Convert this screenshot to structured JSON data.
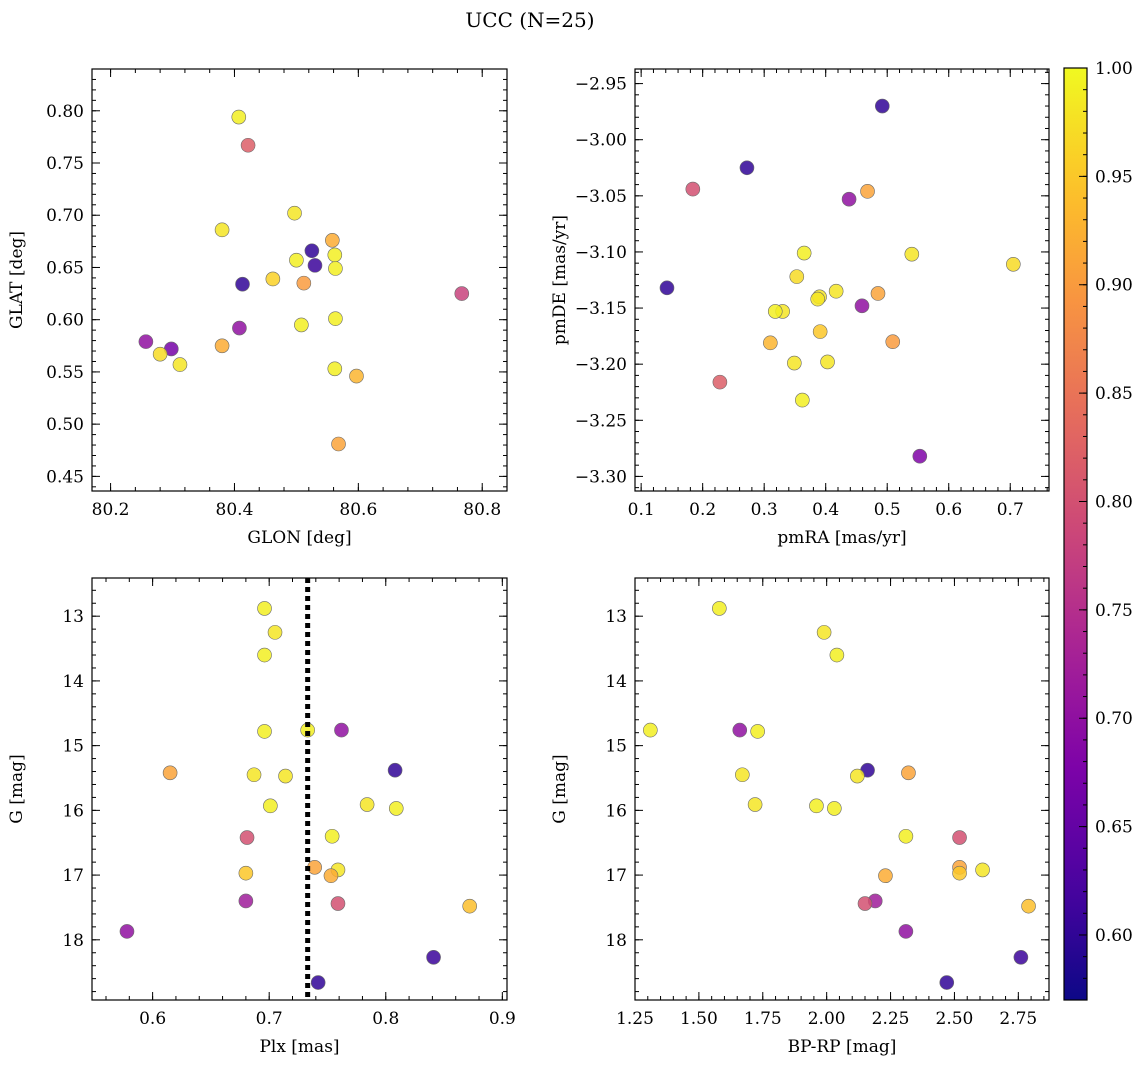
{
  "figure": {
    "title": "UCC (N=25)"
  },
  "colorbar": {
    "range": [
      0.57,
      1.0
    ],
    "ticks": [
      0.6,
      0.65,
      0.7,
      0.75,
      0.8,
      0.85,
      0.9,
      0.95,
      1.0
    ],
    "tick_labels": [
      "0.60",
      "0.65",
      "0.70",
      "0.75",
      "0.80",
      "0.85",
      "0.90",
      "0.95",
      "1.00"
    ],
    "colormap": "plasma"
  },
  "chart_data": [
    {
      "type": "scatter",
      "xlabel": "GLON [deg]",
      "ylabel": "GLAT [deg]",
      "xlim": [
        80.17,
        80.84
      ],
      "ylim": [
        0.436,
        0.84
      ],
      "xticks": [
        80.2,
        80.4,
        80.6,
        80.8
      ],
      "xtick_labels": [
        "80.2",
        "80.4",
        "80.6",
        "80.8"
      ],
      "yticks": [
        0.45,
        0.5,
        0.55,
        0.6,
        0.65,
        0.7,
        0.75,
        0.8
      ],
      "ytick_labels": [
        "0.45",
        "0.50",
        "0.55",
        "0.60",
        "0.65",
        "0.70",
        "0.75",
        "0.80"
      ],
      "points": [
        {
          "x": 80.407,
          "y": 0.794,
          "c": 0.99
        },
        {
          "x": 80.422,
          "y": 0.767,
          "c": 0.82
        },
        {
          "x": 80.497,
          "y": 0.702,
          "c": 0.98
        },
        {
          "x": 80.38,
          "y": 0.686,
          "c": 0.98
        },
        {
          "x": 80.558,
          "y": 0.676,
          "c": 0.92
        },
        {
          "x": 80.525,
          "y": 0.666,
          "c": 0.6
        },
        {
          "x": 80.562,
          "y": 0.662,
          "c": 0.99
        },
        {
          "x": 80.5,
          "y": 0.657,
          "c": 0.99
        },
        {
          "x": 80.53,
          "y": 0.652,
          "c": 0.61
        },
        {
          "x": 80.563,
          "y": 0.649,
          "c": 0.99
        },
        {
          "x": 80.462,
          "y": 0.639,
          "c": 0.96
        },
        {
          "x": 80.512,
          "y": 0.635,
          "c": 0.9
        },
        {
          "x": 80.413,
          "y": 0.634,
          "c": 0.6
        },
        {
          "x": 80.767,
          "y": 0.625,
          "c": 0.78
        },
        {
          "x": 80.563,
          "y": 0.601,
          "c": 0.99
        },
        {
          "x": 80.508,
          "y": 0.595,
          "c": 0.99
        },
        {
          "x": 80.408,
          "y": 0.592,
          "c": 0.7
        },
        {
          "x": 80.257,
          "y": 0.579,
          "c": 0.7
        },
        {
          "x": 80.38,
          "y": 0.575,
          "c": 0.92
        },
        {
          "x": 80.298,
          "y": 0.572,
          "c": 0.67
        },
        {
          "x": 80.28,
          "y": 0.567,
          "c": 0.97
        },
        {
          "x": 80.312,
          "y": 0.557,
          "c": 0.98
        },
        {
          "x": 80.562,
          "y": 0.553,
          "c": 0.99
        },
        {
          "x": 80.597,
          "y": 0.546,
          "c": 0.93
        },
        {
          "x": 80.568,
          "y": 0.481,
          "c": 0.91
        }
      ]
    },
    {
      "type": "scatter",
      "xlabel": "pmRA [mas/yr]",
      "ylabel": "pmDE [mas/yr]",
      "xlim": [
        0.09,
        0.763
      ],
      "ylim": [
        -3.313,
        -2.937
      ],
      "xticks": [
        0.1,
        0.2,
        0.3,
        0.4,
        0.5,
        0.6,
        0.7
      ],
      "xtick_labels": [
        "0.1",
        "0.2",
        "0.3",
        "0.4",
        "0.5",
        "0.6",
        "0.7"
      ],
      "yticks": [
        -3.3,
        -3.25,
        -3.2,
        -3.15,
        -3.1,
        -3.05,
        -3.0,
        -2.95
      ],
      "ytick_labels": [
        "−3.30",
        "−3.25",
        "−3.20",
        "−3.15",
        "−3.10",
        "−3.05",
        "−3.00",
        "−2.95"
      ],
      "points": [
        {
          "x": 0.492,
          "y": -2.97,
          "c": 0.6
        },
        {
          "x": 0.272,
          "y": -3.025,
          "c": 0.6
        },
        {
          "x": 0.184,
          "y": -3.044,
          "c": 0.8
        },
        {
          "x": 0.468,
          "y": -3.046,
          "c": 0.91
        },
        {
          "x": 0.438,
          "y": -3.053,
          "c": 0.7
        },
        {
          "x": 0.365,
          "y": -3.101,
          "c": 0.99
        },
        {
          "x": 0.54,
          "y": -3.102,
          "c": 0.98
        },
        {
          "x": 0.705,
          "y": -3.111,
          "c": 0.97
        },
        {
          "x": 0.353,
          "y": -3.122,
          "c": 0.97
        },
        {
          "x": 0.142,
          "y": -3.132,
          "c": 0.6
        },
        {
          "x": 0.417,
          "y": -3.135,
          "c": 0.98
        },
        {
          "x": 0.485,
          "y": -3.137,
          "c": 0.91
        },
        {
          "x": 0.39,
          "y": -3.14,
          "c": 0.98
        },
        {
          "x": 0.387,
          "y": -3.142,
          "c": 0.98
        },
        {
          "x": 0.459,
          "y": -3.148,
          "c": 0.7
        },
        {
          "x": 0.33,
          "y": -3.153,
          "c": 0.98
        },
        {
          "x": 0.318,
          "y": -3.153,
          "c": 0.99
        },
        {
          "x": 0.391,
          "y": -3.171,
          "c": 0.95
        },
        {
          "x": 0.31,
          "y": -3.181,
          "c": 0.93
        },
        {
          "x": 0.509,
          "y": -3.18,
          "c": 0.9
        },
        {
          "x": 0.403,
          "y": -3.198,
          "c": 0.98
        },
        {
          "x": 0.349,
          "y": -3.199,
          "c": 0.98
        },
        {
          "x": 0.228,
          "y": -3.216,
          "c": 0.82
        },
        {
          "x": 0.362,
          "y": -3.232,
          "c": 0.99
        },
        {
          "x": 0.553,
          "y": -3.282,
          "c": 0.68
        }
      ]
    },
    {
      "type": "scatter",
      "xlabel": "Plx [mas]",
      "ylabel": "G [mag]",
      "xlim": [
        0.548,
        0.904
      ],
      "ylim": [
        18.93,
        12.41
      ],
      "y_inverted": true,
      "vline": 0.733,
      "xticks": [
        0.6,
        0.7,
        0.8,
        0.9
      ],
      "xtick_labels": [
        "0.6",
        "0.7",
        "0.8",
        "0.9"
      ],
      "yticks": [
        13,
        14,
        15,
        16,
        17,
        18
      ],
      "ytick_labels": [
        "13",
        "14",
        "15",
        "16",
        "17",
        "18"
      ],
      "points": [
        {
          "x": 0.696,
          "y": 12.88,
          "c": 0.99
        },
        {
          "x": 0.705,
          "y": 13.25,
          "c": 0.98
        },
        {
          "x": 0.696,
          "y": 13.6,
          "c": 0.99
        },
        {
          "x": 0.696,
          "y": 14.78,
          "c": 0.99
        },
        {
          "x": 0.733,
          "y": 14.76,
          "c": 0.99
        },
        {
          "x": 0.762,
          "y": 14.76,
          "c": 0.7
        },
        {
          "x": 0.808,
          "y": 15.38,
          "c": 0.6
        },
        {
          "x": 0.615,
          "y": 15.42,
          "c": 0.91
        },
        {
          "x": 0.687,
          "y": 15.45,
          "c": 0.98
        },
        {
          "x": 0.714,
          "y": 15.47,
          "c": 0.98
        },
        {
          "x": 0.701,
          "y": 15.93,
          "c": 0.99
        },
        {
          "x": 0.784,
          "y": 15.91,
          "c": 0.98
        },
        {
          "x": 0.809,
          "y": 15.97,
          "c": 0.99
        },
        {
          "x": 0.754,
          "y": 16.4,
          "c": 0.99
        },
        {
          "x": 0.681,
          "y": 16.42,
          "c": 0.8
        },
        {
          "x": 0.739,
          "y": 16.88,
          "c": 0.91
        },
        {
          "x": 0.759,
          "y": 16.92,
          "c": 0.98
        },
        {
          "x": 0.68,
          "y": 16.97,
          "c": 0.95
        },
        {
          "x": 0.753,
          "y": 17.01,
          "c": 0.92
        },
        {
          "x": 0.68,
          "y": 17.4,
          "c": 0.72
        },
        {
          "x": 0.759,
          "y": 17.44,
          "c": 0.8
        },
        {
          "x": 0.872,
          "y": 17.48,
          "c": 0.94
        },
        {
          "x": 0.578,
          "y": 17.87,
          "c": 0.7
        },
        {
          "x": 0.841,
          "y": 18.27,
          "c": 0.61
        },
        {
          "x": 0.742,
          "y": 18.66,
          "c": 0.6
        }
      ]
    },
    {
      "type": "scatter",
      "xlabel": "BP-RP [mag]",
      "ylabel": "G [mag]",
      "xlim": [
        1.25,
        2.87
      ],
      "ylim": [
        18.93,
        12.41
      ],
      "y_inverted": true,
      "xticks": [
        1.25,
        1.5,
        1.75,
        2.0,
        2.25,
        2.5,
        2.75
      ],
      "xtick_labels": [
        "1.25",
        "1.50",
        "1.75",
        "2.00",
        "2.25",
        "2.50",
        "2.75"
      ],
      "yticks": [
        13,
        14,
        15,
        16,
        17,
        18
      ],
      "ytick_labels": [
        "13",
        "14",
        "15",
        "16",
        "17",
        "18"
      ],
      "points": [
        {
          "x": 1.58,
          "y": 12.88,
          "c": 0.99
        },
        {
          "x": 1.99,
          "y": 13.25,
          "c": 0.98
        },
        {
          "x": 2.04,
          "y": 13.6,
          "c": 0.99
        },
        {
          "x": 1.31,
          "y": 14.76,
          "c": 0.99
        },
        {
          "x": 1.66,
          "y": 14.76,
          "c": 0.7
        },
        {
          "x": 1.73,
          "y": 14.78,
          "c": 0.99
        },
        {
          "x": 2.16,
          "y": 15.38,
          "c": 0.6
        },
        {
          "x": 1.67,
          "y": 15.45,
          "c": 0.98
        },
        {
          "x": 2.12,
          "y": 15.47,
          "c": 0.98
        },
        {
          "x": 2.32,
          "y": 15.42,
          "c": 0.91
        },
        {
          "x": 1.72,
          "y": 15.91,
          "c": 0.98
        },
        {
          "x": 1.96,
          "y": 15.93,
          "c": 0.99
        },
        {
          "x": 2.03,
          "y": 15.97,
          "c": 0.99
        },
        {
          "x": 2.31,
          "y": 16.4,
          "c": 0.99
        },
        {
          "x": 2.52,
          "y": 16.42,
          "c": 0.8
        },
        {
          "x": 2.52,
          "y": 16.88,
          "c": 0.91
        },
        {
          "x": 2.61,
          "y": 16.92,
          "c": 0.98
        },
        {
          "x": 2.52,
          "y": 16.97,
          "c": 0.95
        },
        {
          "x": 2.23,
          "y": 17.01,
          "c": 0.92
        },
        {
          "x": 2.19,
          "y": 17.4,
          "c": 0.72
        },
        {
          "x": 2.15,
          "y": 17.44,
          "c": 0.8
        },
        {
          "x": 2.79,
          "y": 17.48,
          "c": 0.94
        },
        {
          "x": 2.31,
          "y": 17.87,
          "c": 0.7
        },
        {
          "x": 2.76,
          "y": 18.27,
          "c": 0.61
        },
        {
          "x": 2.47,
          "y": 18.66,
          "c": 0.6
        }
      ]
    }
  ]
}
